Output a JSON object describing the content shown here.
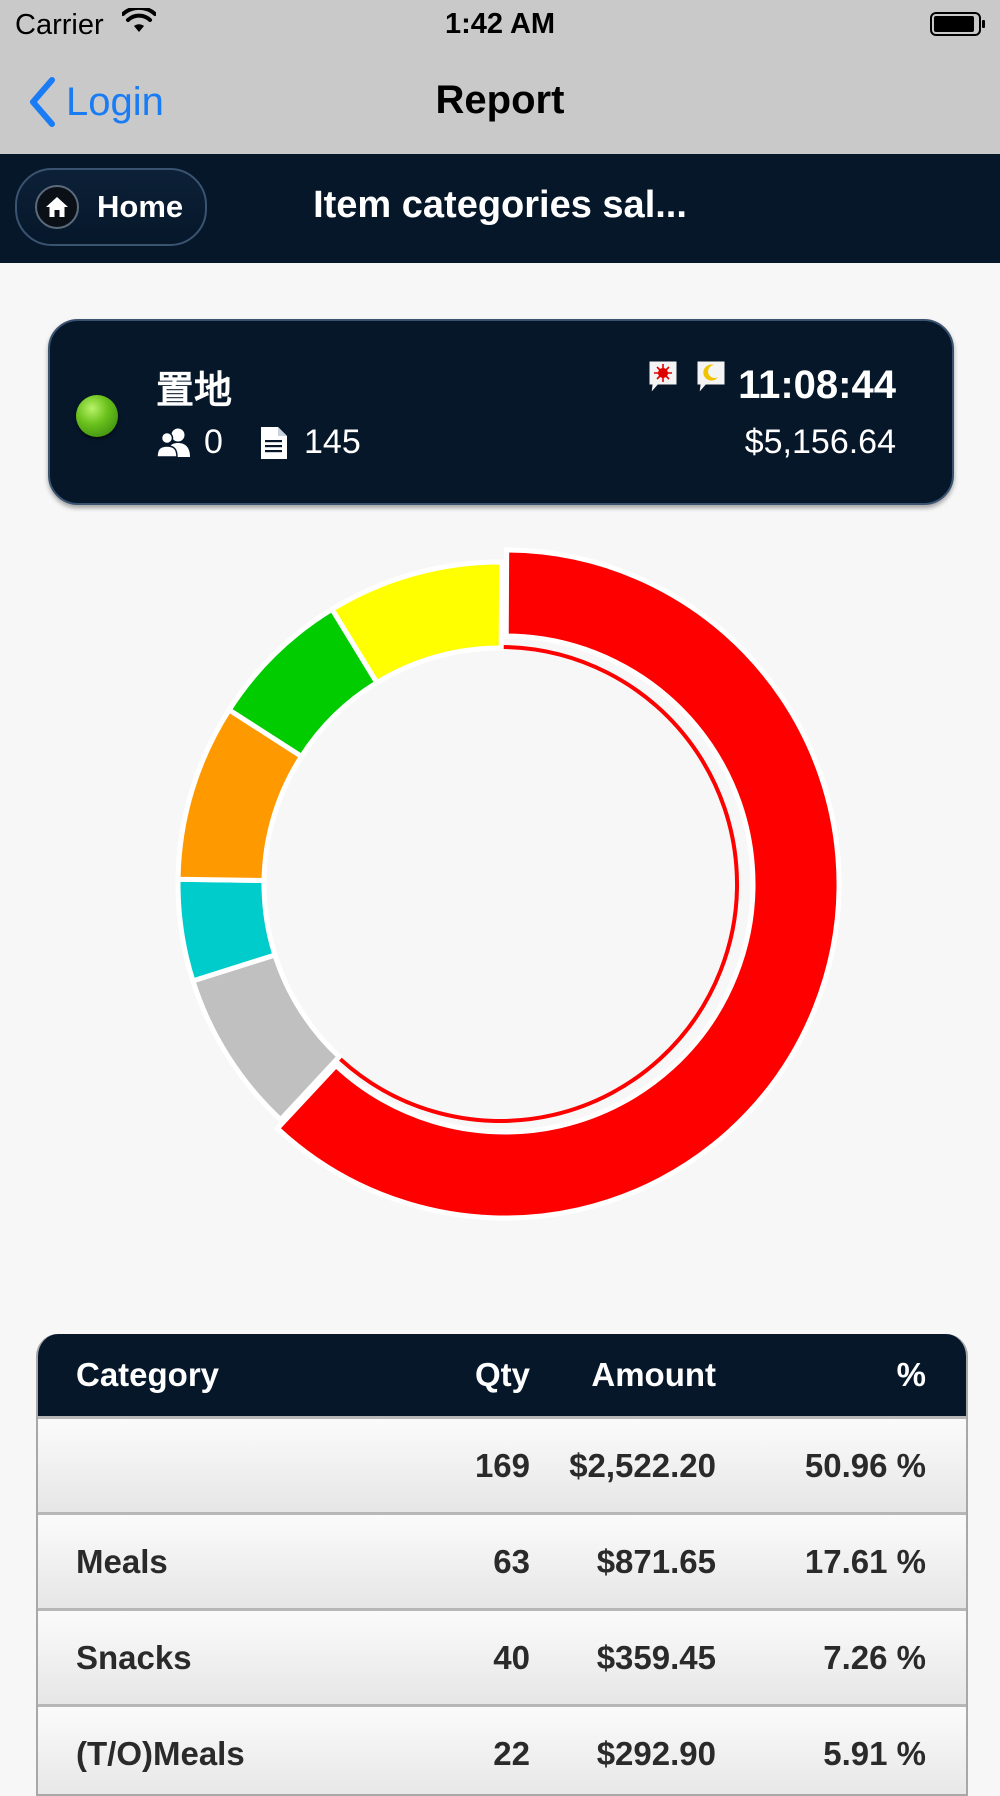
{
  "status_bar": {
    "carrier": "Carrier",
    "time": "1:42 AM"
  },
  "nav_bar": {
    "back_label": "Login",
    "title": "Report"
  },
  "app_header": {
    "home_label": "Home",
    "title": "Item categories sal..."
  },
  "store": {
    "name": "置地",
    "status_color": "#6cc21d",
    "guests": "0",
    "docs": "145",
    "time": "11:08:44",
    "amount": "$5,156.64",
    "icons": [
      "alert-chat-icon",
      "night-chat-icon"
    ]
  },
  "chart_data": {
    "type": "pie",
    "donut": true,
    "title": "",
    "labels": [
      "",
      "Meals",
      "Snacks",
      "(T/O)Meals",
      "",
      "",
      ""
    ],
    "values": [
      50.96,
      17.61,
      7.26,
      5.91,
      7.3,
      4.2,
      6.76
    ],
    "colors": [
      "#ff0000",
      "#c0c0c0",
      "#00cccc",
      "#ff9900",
      "#00cc00",
      "#ffff00"
    ],
    "note_selected_slice": 0
  },
  "table": {
    "headers": {
      "category": "Category",
      "qty": "Qty",
      "amount": "Amount",
      "percent": "%"
    },
    "rows": [
      {
        "category": "",
        "qty": "169",
        "amount": "$2,522.20",
        "percent": "50.96 %"
      },
      {
        "category": "Meals",
        "qty": "63",
        "amount": "$871.65",
        "percent": "17.61 %"
      },
      {
        "category": "Snacks",
        "qty": "40",
        "amount": "$359.45",
        "percent": "7.26 %"
      },
      {
        "category": "(T/O)Meals",
        "qty": "22",
        "amount": "$292.90",
        "percent": "5.91 %"
      }
    ]
  }
}
